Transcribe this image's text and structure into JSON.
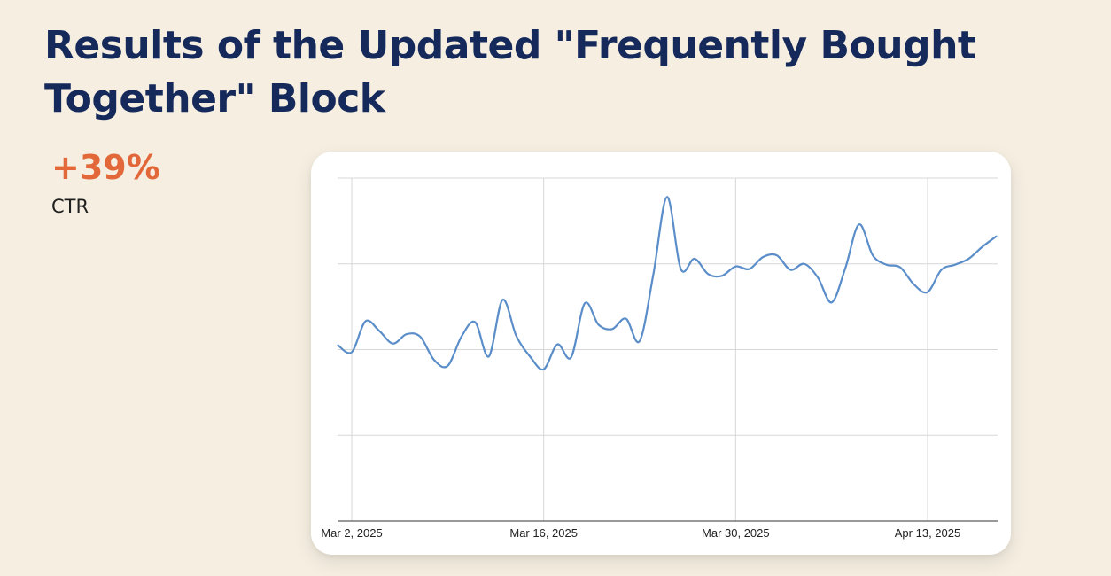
{
  "title": "Results of the Updated \"Frequently Bought Together\" Block",
  "stat": {
    "value": "+39%",
    "label": "CTR"
  },
  "chart_data": {
    "type": "line",
    "title": "",
    "xlabel": "",
    "ylabel": "",
    "ylim": [
      0,
      4
    ],
    "grid": true,
    "legend": "none",
    "line_color": "#5b8ec9",
    "tick_labels": [
      "Mar 2, 2025",
      "Mar 16, 2025",
      "Mar 30, 2025",
      "Apr 13, 2025"
    ],
    "tick_dates": [
      "2025-03-02",
      "2025-03-16",
      "2025-03-30",
      "2025-04-13"
    ],
    "x": [
      "2025-03-01",
      "2025-03-02",
      "2025-03-03",
      "2025-03-04",
      "2025-03-05",
      "2025-03-06",
      "2025-03-07",
      "2025-03-08",
      "2025-03-09",
      "2025-03-10",
      "2025-03-11",
      "2025-03-12",
      "2025-03-13",
      "2025-03-14",
      "2025-03-15",
      "2025-03-16",
      "2025-03-17",
      "2025-03-18",
      "2025-03-19",
      "2025-03-20",
      "2025-03-21",
      "2025-03-22",
      "2025-03-23",
      "2025-03-24",
      "2025-03-25",
      "2025-03-26",
      "2025-03-27",
      "2025-03-28",
      "2025-03-29",
      "2025-03-30",
      "2025-03-31",
      "2025-04-01",
      "2025-04-02",
      "2025-04-03",
      "2025-04-04",
      "2025-04-05",
      "2025-04-06",
      "2025-04-07",
      "2025-04-08",
      "2025-04-09",
      "2025-04-10",
      "2025-04-11",
      "2025-04-12",
      "2025-04-13",
      "2025-04-14",
      "2025-04-15",
      "2025-04-16",
      "2025-04-17",
      "2025-04-18"
    ],
    "values": [
      2.05,
      1.97,
      2.33,
      2.22,
      2.07,
      2.18,
      2.15,
      1.88,
      1.81,
      2.15,
      2.32,
      1.92,
      2.58,
      2.16,
      1.92,
      1.77,
      2.06,
      1.91,
      2.54,
      2.29,
      2.24,
      2.36,
      2.1,
      2.88,
      3.78,
      2.94,
      3.06,
      2.88,
      2.86,
      2.97,
      2.94,
      3.08,
      3.1,
      2.93,
      3.0,
      2.84,
      2.55,
      2.95,
      3.46,
      3.1,
      2.99,
      2.96,
      2.76,
      2.67,
      2.93,
      2.99,
      3.06,
      3.2,
      3.32
    ]
  }
}
